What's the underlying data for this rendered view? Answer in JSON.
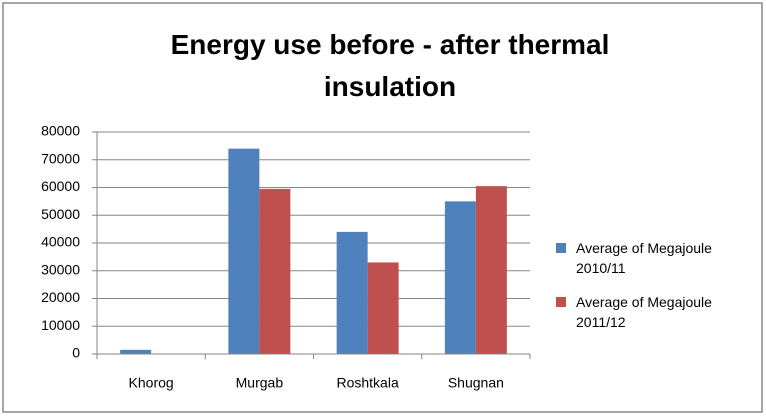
{
  "chart_data": {
    "type": "bar",
    "title": "Energy use before - after thermal insulation",
    "categories": [
      "Khorog",
      "Murgab",
      "Roshtkala",
      "Shugnan"
    ],
    "series": [
      {
        "name": "Average of Megajoule 2010/11",
        "color": "#4f81bd",
        "values": [
          1500,
          74000,
          44000,
          55000
        ]
      },
      {
        "name": "Average of Megajoule 2011/12",
        "color": "#c0504d",
        "values": [
          0,
          59500,
          33000,
          60500
        ]
      }
    ],
    "ylim": [
      0,
      80000
    ],
    "yticks": [
      0,
      10000,
      20000,
      30000,
      40000,
      50000,
      60000,
      70000,
      80000
    ],
    "grid": true,
    "legend": "right"
  }
}
